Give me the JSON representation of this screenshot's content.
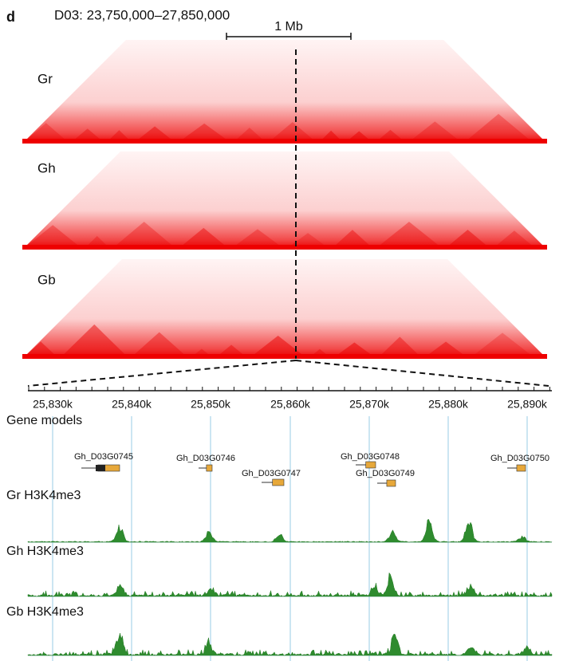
{
  "panel_label": "d",
  "region": "D03: 23,750,000–27,850,000",
  "scale_bar": "1 Mb",
  "hic_tracks": [
    "Gr",
    "Gh",
    "Gb"
  ],
  "axis_ticks": [
    "25,830k",
    "25,840k",
    "25,850k",
    "25,860k",
    "25,870k",
    "25,880k",
    "25,890k"
  ],
  "gene_track_label": "Gene models",
  "genes": [
    "Gh_D03G0745",
    "Gh_D03G0746",
    "Gh_D03G0747",
    "Gh_D03G0748",
    "Gh_D03G0749",
    "Gh_D03G0750"
  ],
  "signal_tracks": [
    "Gr H3K4me3",
    "Gh H3K4me3",
    "Gb H3K4me3"
  ]
}
